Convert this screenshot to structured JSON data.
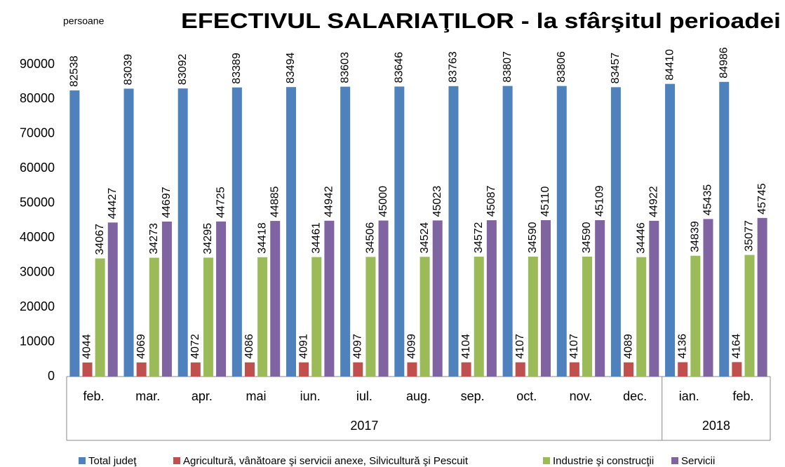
{
  "chart_data": {
    "type": "bar",
    "title": "EFECTIVUL SALARIAŢILOR - la sfârşitul perioadei",
    "y_label": "persoane",
    "category_groups": [
      {
        "label": "2017",
        "categories": [
          "feb.",
          "mar.",
          "apr.",
          "mai",
          "iun.",
          "iul.",
          "aug.",
          "sep.",
          "oct.",
          "nov.",
          "dec."
        ]
      },
      {
        "label": "2018",
        "categories": [
          "ian.",
          "feb."
        ]
      }
    ],
    "series": [
      {
        "name": "Total judeţ",
        "color": "#4f81bd",
        "values": [
          82538,
          83039,
          83092,
          83389,
          83494,
          83603,
          83646,
          83763,
          83807,
          83806,
          83457,
          84410,
          84986
        ]
      },
      {
        "name": "Agricultură, vânătoare şi servicii anexe, Silvicultură şi Pescuit",
        "color": "#c0504d",
        "values": [
          4044,
          4069,
          4072,
          4086,
          4091,
          4097,
          4099,
          4104,
          4107,
          4107,
          4089,
          4136,
          4164
        ]
      },
      {
        "name": "Industrie şi construcţii",
        "color": "#9bbb59",
        "values": [
          34067,
          34273,
          34295,
          34418,
          34461,
          34506,
          34524,
          34572,
          34590,
          34590,
          34446,
          34839,
          35077
        ]
      },
      {
        "name": "Servicii",
        "color": "#8064a2",
        "values": [
          44427,
          44697,
          44725,
          44885,
          44942,
          45000,
          45023,
          45087,
          45110,
          45109,
          44922,
          45435,
          45745
        ]
      }
    ],
    "ylim": [
      0,
      90000
    ],
    "yticks": [
      0,
      10000,
      20000,
      30000,
      40000,
      50000,
      60000,
      70000,
      80000,
      90000
    ],
    "grid": false,
    "legend": "bottom"
  }
}
